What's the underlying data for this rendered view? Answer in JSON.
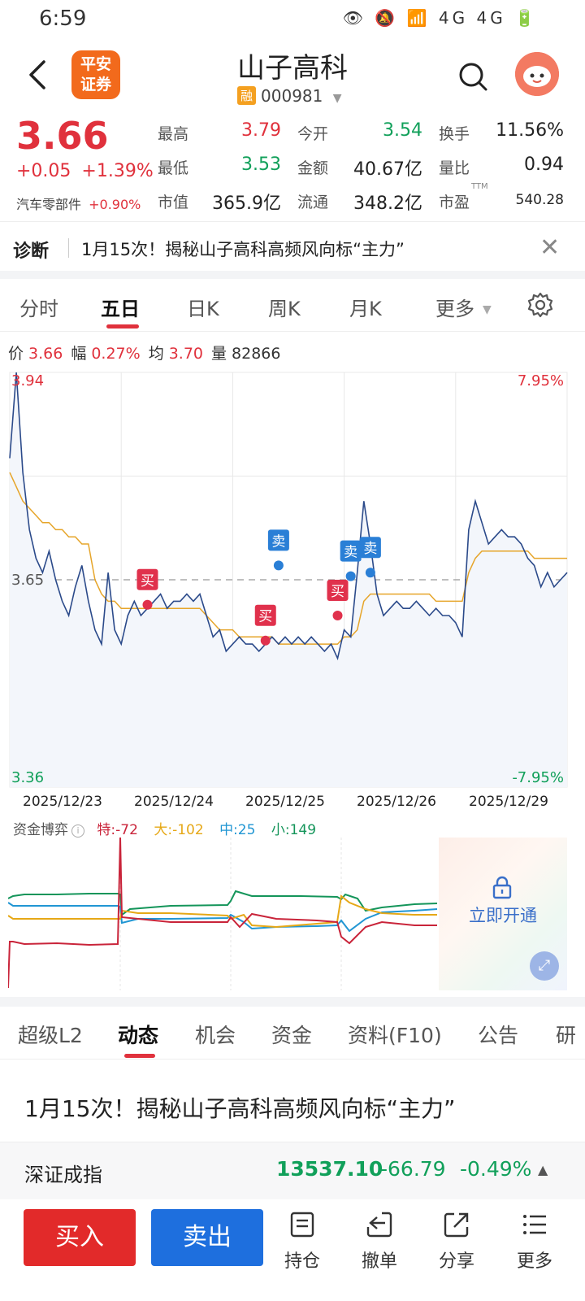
{
  "status": {
    "time": "6:59",
    "icons": "👁 🔕 📶 4G 4G 🔋"
  },
  "header": {
    "broker_logo": "平安\n证券",
    "stock_name": "山子高科",
    "margin_badge": "融",
    "stock_code": "000981"
  },
  "quote": {
    "price": "3.66",
    "change": "+0.05",
    "change_pct": "+1.39%",
    "sector": "汽车零部件",
    "sector_pct": "+0.90%",
    "stats": [
      {
        "label": "最高",
        "value": "3.79",
        "color": "red"
      },
      {
        "label": "今开",
        "value": "3.54",
        "color": "green"
      },
      {
        "label": "换手",
        "value": "11.56%",
        "color": "dark"
      },
      {
        "label": "最低",
        "value": "3.53",
        "color": "green"
      },
      {
        "label": "金额",
        "value": "40.67亿",
        "color": "dark"
      },
      {
        "label": "量比",
        "value": "0.94",
        "color": "dark"
      },
      {
        "label": "市值",
        "value": "365.9亿",
        "color": "dark"
      },
      {
        "label": "流通",
        "value": "348.2亿",
        "color": "dark"
      },
      {
        "label": "市盈",
        "value": "540.28",
        "color": "dark",
        "sup": "TTM"
      }
    ]
  },
  "diagnosis": {
    "label": "诊断",
    "text": "1月15次！揭秘山子高科高频风向标“主力”"
  },
  "period_tabs": [
    "分时",
    "五日",
    "日K",
    "周K",
    "月K",
    "更多"
  ],
  "chart_info": {
    "price_label": "价",
    "price": "3.66",
    "amp_label": "幅",
    "amp": "0.27%",
    "avg_label": "均",
    "avg": "3.70",
    "vol_label": "量",
    "vol": "82866"
  },
  "chart_data": {
    "type": "line",
    "ylim": [
      3.36,
      3.94
    ],
    "y_ticks_left": [
      "3.94",
      "3.65",
      "3.36"
    ],
    "y_ticks_right": [
      "7.95%",
      "-7.95%"
    ],
    "prev_close": 3.65,
    "x_labels": [
      "2025/12/23",
      "2025/12/24",
      "2025/12/25",
      "2025/12/26",
      "2025/12/29"
    ],
    "series": [
      {
        "values": [
          3.82,
          3.94,
          3.8,
          3.72,
          3.68,
          3.66,
          3.69,
          3.65,
          3.62,
          3.6,
          3.64,
          3.67,
          3.62,
          3.58,
          3.56,
          3.66,
          3.58,
          3.56,
          3.6,
          3.62,
          3.6,
          3.61,
          3.62,
          3.63,
          3.61,
          3.62,
          3.62,
          3.63,
          3.62,
          3.63,
          3.6,
          3.57,
          3.58,
          3.55,
          3.56,
          3.57,
          3.56,
          3.56,
          3.55,
          3.56,
          3.57,
          3.56,
          3.57,
          3.56,
          3.57,
          3.56,
          3.57,
          3.56,
          3.55,
          3.56,
          3.54,
          3.58,
          3.57,
          3.66,
          3.76,
          3.7,
          3.63,
          3.6,
          3.61,
          3.62,
          3.61,
          3.61,
          3.62,
          3.61,
          3.6,
          3.61,
          3.6,
          3.6,
          3.59,
          3.57,
          3.72,
          3.76,
          3.73,
          3.7,
          3.71,
          3.72,
          3.71,
          3.71,
          3.7,
          3.68,
          3.67,
          3.64,
          3.66,
          3.64,
          3.65,
          3.66
        ]
      },
      {
        "values": [
          3.8,
          3.78,
          3.76,
          3.75,
          3.74,
          3.73,
          3.73,
          3.72,
          3.72,
          3.71,
          3.71,
          3.7,
          3.7,
          3.65,
          3.63,
          3.62,
          3.62,
          3.61,
          3.61,
          3.61,
          3.61,
          3.61,
          3.61,
          3.61,
          3.61,
          3.61,
          3.61,
          3.61,
          3.61,
          3.61,
          3.6,
          3.59,
          3.58,
          3.58,
          3.58,
          3.57,
          3.57,
          3.57,
          3.57,
          3.57,
          3.57,
          3.56,
          3.56,
          3.56,
          3.56,
          3.56,
          3.56,
          3.56,
          3.56,
          3.56,
          3.56,
          3.57,
          3.57,
          3.58,
          3.62,
          3.63,
          3.63,
          3.63,
          3.63,
          3.63,
          3.63,
          3.63,
          3.63,
          3.63,
          3.63,
          3.62,
          3.62,
          3.62,
          3.62,
          3.62,
          3.66,
          3.68,
          3.69,
          3.69,
          3.69,
          3.69,
          3.69,
          3.69,
          3.69,
          3.69,
          3.68,
          3.68,
          3.68,
          3.68,
          3.68,
          3.68
        ]
      }
    ],
    "trades": [
      {
        "label": "买",
        "type": "buy",
        "value": 3.615
      },
      {
        "label": "买",
        "type": "buy",
        "value": 3.565
      },
      {
        "label": "卖",
        "type": "sell",
        "value": 3.67
      },
      {
        "label": "买",
        "type": "buy",
        "value": 3.6
      },
      {
        "label": "卖",
        "type": "sell",
        "value": 3.655
      },
      {
        "label": "卖",
        "type": "sell",
        "value": 3.66
      }
    ]
  },
  "fund_flow": {
    "title": "资金博弈",
    "info_icon": "i",
    "items": [
      {
        "label": "特:",
        "value": "-72",
        "color": "#c9243a"
      },
      {
        "label": "大:",
        "value": "-102",
        "color": "#e6a817"
      },
      {
        "label": "中:",
        "value": "25",
        "color": "#2196d3"
      },
      {
        "label": "小:",
        "value": "149",
        "color": "#14955a"
      }
    ],
    "unlock_text": "立即开通"
  },
  "news_tabs": [
    "超级L2",
    "动态",
    "机会",
    "资金",
    "资料(F10)",
    "公告",
    "研"
  ],
  "news_title": "1月15次！揭秘山子高科高频风向标“主力”",
  "index_bar": {
    "name": "深证成指",
    "value": "13537.10",
    "change": "-66.79",
    "pct": "-0.49%"
  },
  "bottom_bar": {
    "buy_label": "买入",
    "sell_label": "卖出",
    "items": [
      "持仓",
      "撤单",
      "分享",
      "更多"
    ]
  }
}
